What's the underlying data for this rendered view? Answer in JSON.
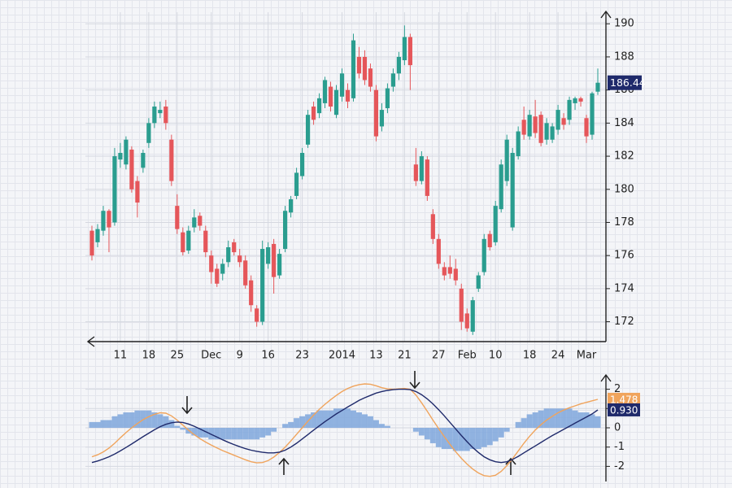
{
  "chart_data": [
    {
      "type": "candlestick",
      "categories": [
        null,
        null,
        null,
        null,
        null,
        "11",
        null,
        null,
        null,
        null,
        "18",
        null,
        null,
        null,
        null,
        "25",
        null,
        null,
        null,
        null,
        null,
        "Dec",
        null,
        null,
        null,
        null,
        "9",
        null,
        null,
        null,
        null,
        "16",
        null,
        null,
        null,
        null,
        null,
        "23",
        null,
        null,
        null,
        null,
        null,
        null,
        "2014",
        null,
        null,
        null,
        null,
        null,
        "13",
        null,
        null,
        null,
        null,
        "21",
        null,
        null,
        null,
        null,
        null,
        "27",
        null,
        null,
        null,
        null,
        "Feb",
        null,
        null,
        null,
        null,
        "10",
        null,
        null,
        null,
        null,
        null,
        "18",
        null,
        null,
        null,
        null,
        "24",
        null,
        null,
        null,
        null,
        "Mar",
        null,
        null
      ],
      "open": [
        177.5,
        176.8,
        177.5,
        178.7,
        178.0,
        181.8,
        181.5,
        182.4,
        180.5,
        181.3,
        182.8,
        184.0,
        184.6,
        185.0,
        183.0,
        179.0,
        177.4,
        176.3,
        177.7,
        178.4,
        177.5,
        176.0,
        175.2,
        174.9,
        175.6,
        176.8,
        176.0,
        175.7,
        174.5,
        172.8,
        172.0,
        175.5,
        176.7,
        174.8,
        176.4,
        178.6,
        179.6,
        180.8,
        182.7,
        185.0,
        184.6,
        185.2,
        186.2,
        184.5,
        185.6,
        186.0,
        185.5,
        188.0,
        188.0,
        187.3,
        186.0,
        183.8,
        184.9,
        186.2,
        187.0,
        187.8,
        189.2,
        181.5,
        180.5,
        181.8,
        178.5,
        177.0,
        175.3,
        175.3,
        175.2,
        174.0,
        172.5,
        171.4,
        174.0,
        175.0,
        177.3,
        176.8,
        178.8,
        180.5,
        177.7,
        182.0,
        184.2,
        183.2,
        184.4,
        184.5,
        183.0,
        183.0,
        183.6,
        184.3,
        184.2,
        185.2,
        185.5,
        184.3,
        183.3,
        185.9
      ],
      "high": [
        177.8,
        177.9,
        179.0,
        178.8,
        182.5,
        182.8,
        183.2,
        182.6,
        180.8,
        182.4,
        184.3,
        185.3,
        185.3,
        185.4,
        183.3,
        179.7,
        177.7,
        177.8,
        178.8,
        178.6,
        177.8,
        176.3,
        175.5,
        175.8,
        176.9,
        177.0,
        176.4,
        176.0,
        174.8,
        173.0,
        176.9,
        176.8,
        177.0,
        176.4,
        179.0,
        179.6,
        181.3,
        182.5,
        184.8,
        185.3,
        185.8,
        186.8,
        186.5,
        186.3,
        187.3,
        186.4,
        189.4,
        188.6,
        188.4,
        187.6,
        186.3,
        185.2,
        186.4,
        187.3,
        188.3,
        189.9,
        189.4,
        182.5,
        182.3,
        182.0,
        178.8,
        177.3,
        175.6,
        176.0,
        175.8,
        174.3,
        172.8,
        173.5,
        175.0,
        177.3,
        177.5,
        179.3,
        181.8,
        183.3,
        182.5,
        183.8,
        185.0,
        184.8,
        185.4,
        184.7,
        184.3,
        184.0,
        185.1,
        184.6,
        185.6,
        185.6,
        185.6,
        184.5,
        185.9,
        187.3
      ],
      "low": [
        175.7,
        176.5,
        177.2,
        176.2,
        177.8,
        181.3,
        181.2,
        179.8,
        178.3,
        181.0,
        182.5,
        183.7,
        184.3,
        183.6,
        180.2,
        177.3,
        176.0,
        176.1,
        177.4,
        177.5,
        175.9,
        174.3,
        174.1,
        174.5,
        175.3,
        176.0,
        175.3,
        174.0,
        172.6,
        171.7,
        171.8,
        175.2,
        173.7,
        174.6,
        176.2,
        178.3,
        179.4,
        180.6,
        182.5,
        183.9,
        184.3,
        184.9,
        184.7,
        184.3,
        185.3,
        184.9,
        185.3,
        186.7,
        186.3,
        185.9,
        182.9,
        183.5,
        184.6,
        185.9,
        186.6,
        187.5,
        186.0,
        180.2,
        180.3,
        179.3,
        176.7,
        175.2,
        174.5,
        174.6,
        174.2,
        171.5,
        171.4,
        171.2,
        173.8,
        174.8,
        176.3,
        176.6,
        178.6,
        180.2,
        177.5,
        181.8,
        183.0,
        183.0,
        183.1,
        182.6,
        182.7,
        182.8,
        183.3,
        183.6,
        183.9,
        184.8,
        185.0,
        182.8,
        183.0,
        185.7
      ],
      "close": [
        176.0,
        177.6,
        178.7,
        177.7,
        182.0,
        182.2,
        183.0,
        180.0,
        179.2,
        182.2,
        184.0,
        185.0,
        184.8,
        184.0,
        180.5,
        177.6,
        176.2,
        177.5,
        178.3,
        177.8,
        176.2,
        175.0,
        174.3,
        175.5,
        176.5,
        176.2,
        175.6,
        174.2,
        173.0,
        172.0,
        176.4,
        176.5,
        174.7,
        176.1,
        178.7,
        179.4,
        181.0,
        182.2,
        184.5,
        184.2,
        185.5,
        186.6,
        185.0,
        186.0,
        187.0,
        185.3,
        189.0,
        187.0,
        186.6,
        186.2,
        183.2,
        184.8,
        186.1,
        187.0,
        188.0,
        189.2,
        187.5,
        180.5,
        182.0,
        179.6,
        177.0,
        175.5,
        174.8,
        174.9,
        174.5,
        172.0,
        171.6,
        173.3,
        174.8,
        177.0,
        176.5,
        179.0,
        181.5,
        183.0,
        182.2,
        183.5,
        183.3,
        184.5,
        183.4,
        182.8,
        184.0,
        183.8,
        184.8,
        183.9,
        185.4,
        185.5,
        185.3,
        183.2,
        185.8,
        186.44
      ],
      "ylim": [
        170.8,
        190.7
      ],
      "yticks": [
        172,
        174,
        176,
        178,
        180,
        182,
        184,
        186,
        188,
        190
      ],
      "grid": true,
      "up_color": "#2a9d8f",
      "down_color": "#e5565a",
      "last_color": "#1f2a6b"
    },
    {
      "type": "combo",
      "series": [
        {
          "type": "bar",
          "color": "#7ea6dc",
          "values": [
            0.3,
            0.3,
            0.4,
            0.4,
            0.6,
            0.7,
            0.8,
            0.8,
            0.9,
            0.9,
            0.9,
            0.8,
            0.7,
            0.6,
            0.4,
            0.1,
            -0.1,
            -0.3,
            -0.4,
            -0.5,
            -0.5,
            -0.6,
            -0.6,
            -0.6,
            -0.6,
            -0.6,
            -0.6,
            -0.6,
            -0.6,
            -0.6,
            -0.5,
            -0.4,
            -0.2,
            0.0,
            0.2,
            0.3,
            0.5,
            0.6,
            0.7,
            0.8,
            0.9,
            0.9,
            0.9,
            1.0,
            1.0,
            1.0,
            0.9,
            0.8,
            0.7,
            0.6,
            0.4,
            0.2,
            0.1,
            0.0,
            0.0,
            0.0,
            0.0,
            -0.2,
            -0.4,
            -0.6,
            -0.8,
            -1.0,
            -1.1,
            -1.1,
            -1.2,
            -1.2,
            -1.2,
            -1.1,
            -1.1,
            -1.0,
            -0.9,
            -0.7,
            -0.5,
            -0.2,
            0.0,
            0.3,
            0.5,
            0.7,
            0.8,
            0.9,
            1.0,
            1.0,
            1.0,
            1.0,
            1.0,
            0.9,
            0.8,
            0.8,
            0.7,
            0.6
          ]
        },
        {
          "type": "line",
          "color": "#f0a45c",
          "values": [
            -1.5,
            -1.4,
            -1.25,
            -1.05,
            -0.8,
            -0.52,
            -0.25,
            0.0,
            0.22,
            0.42,
            0.58,
            0.7,
            0.78,
            0.76,
            0.62,
            0.4,
            0.14,
            -0.12,
            -0.36,
            -0.56,
            -0.74,
            -0.9,
            -1.04,
            -1.18,
            -1.3,
            -1.42,
            -1.54,
            -1.66,
            -1.76,
            -1.82,
            -1.8,
            -1.7,
            -1.52,
            -1.28,
            -1.0,
            -0.68,
            -0.34,
            0.0,
            0.34,
            0.66,
            0.96,
            1.22,
            1.46,
            1.68,
            1.88,
            2.04,
            2.16,
            2.24,
            2.28,
            2.26,
            2.18,
            2.08,
            2.02,
            2.0,
            2.02,
            2.04,
            2.0,
            1.7,
            1.3,
            0.86,
            0.4,
            -0.04,
            -0.46,
            -0.86,
            -1.24,
            -1.58,
            -1.88,
            -2.14,
            -2.34,
            -2.48,
            -2.52,
            -2.46,
            -2.26,
            -1.96,
            -1.6,
            -1.2,
            -0.8,
            -0.44,
            -0.12,
            0.16,
            0.4,
            0.6,
            0.78,
            0.92,
            1.04,
            1.14,
            1.24,
            1.32,
            1.4,
            1.478
          ]
        },
        {
          "type": "line",
          "color": "#1f2a6b",
          "values": [
            -1.8,
            -1.72,
            -1.62,
            -1.5,
            -1.36,
            -1.2,
            -1.02,
            -0.84,
            -0.65,
            -0.46,
            -0.28,
            -0.1,
            0.06,
            0.18,
            0.26,
            0.3,
            0.28,
            0.2,
            0.08,
            -0.06,
            -0.2,
            -0.34,
            -0.48,
            -0.62,
            -0.75,
            -0.87,
            -0.98,
            -1.08,
            -1.16,
            -1.22,
            -1.27,
            -1.3,
            -1.3,
            -1.26,
            -1.16,
            -1.0,
            -0.8,
            -0.58,
            -0.35,
            -0.12,
            0.1,
            0.32,
            0.52,
            0.72,
            0.9,
            1.08,
            1.25,
            1.42,
            1.56,
            1.68,
            1.8,
            1.88,
            1.94,
            1.98,
            2.0,
            2.0,
            1.98,
            1.88,
            1.72,
            1.5,
            1.24,
            0.94,
            0.62,
            0.28,
            -0.06,
            -0.4,
            -0.72,
            -1.02,
            -1.28,
            -1.5,
            -1.66,
            -1.76,
            -1.8,
            -1.76,
            -1.64,
            -1.48,
            -1.3,
            -1.12,
            -0.94,
            -0.76,
            -0.58,
            -0.4,
            -0.24,
            -0.08,
            0.08,
            0.24,
            0.4,
            0.56,
            0.72,
            0.93
          ],
          "value_labels": [
            null,
            null,
            null,
            null,
            null,
            null,
            null,
            null,
            null,
            null,
            null,
            null,
            null,
            null,
            null,
            null,
            null,
            null,
            null,
            null,
            null,
            null,
            null,
            null,
            null,
            null,
            null,
            null,
            null,
            null,
            null,
            null,
            null,
            null,
            null,
            null,
            null,
            null,
            null,
            null,
            null,
            null,
            null,
            null,
            null,
            null,
            null,
            null,
            null,
            null,
            null,
            null,
            null,
            null,
            null,
            null,
            null,
            null,
            null,
            null,
            null,
            null,
            null,
            null,
            null,
            null,
            null,
            null,
            null,
            null,
            null,
            null,
            null,
            null,
            null,
            null,
            null,
            null,
            null,
            null,
            null,
            null,
            null,
            null,
            null,
            null,
            null,
            null,
            null,
            "0.930"
          ]
        }
      ],
      "ylim": [
        -2.7,
        2.7
      ],
      "yticks": [
        -2,
        -1,
        0,
        1,
        2
      ],
      "grid": true
    }
  ]
}
